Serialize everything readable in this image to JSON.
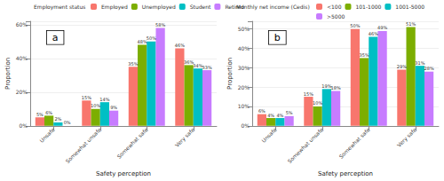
{
  "chart_data": [
    {
      "type": "bar",
      "annotations": [
        "a"
      ],
      "legend_title": "Employment status",
      "x_label": "Safety perception",
      "y_label": "Proportion",
      "categories": [
        "Unsafe",
        "Somewhat unsafe",
        "Somewhat safe",
        "Very safe"
      ],
      "series": [
        {
          "name": "Employed",
          "color": "#F8766D",
          "values": [
            5,
            15,
            35,
            46
          ],
          "value_labels": [
            "5%",
            "15%",
            "35%",
            "46%"
          ]
        },
        {
          "name": "Unemployed",
          "color": "#7CAE00",
          "values": [
            6,
            10,
            48,
            36
          ],
          "value_labels": [
            "6%",
            "10%",
            "48%",
            "36%"
          ]
        },
        {
          "name": "Student",
          "color": "#00BFC4",
          "values": [
            2,
            14,
            50,
            34
          ],
          "value_labels": [
            "2%",
            "14%",
            "50%",
            "34%"
          ]
        },
        {
          "name": "Retired",
          "color": "#C77CFF",
          "values": [
            0,
            9,
            58,
            33
          ],
          "value_labels": [
            "0%",
            "9%",
            "58%",
            "33%"
          ]
        }
      ],
      "ylim": [
        0,
        62
      ],
      "yticks": [
        {
          "value": 0,
          "label": "0%"
        },
        {
          "value": 20,
          "label": "20%"
        },
        {
          "value": 40,
          "label": "40%"
        },
        {
          "value": 60,
          "label": "60%"
        }
      ],
      "grid": true,
      "legend": "top",
      "data_labels": true
    },
    {
      "type": "bar",
      "annotations": [
        "b"
      ],
      "legend_title": "Monthly net income (Cedis)",
      "x_label": "Safety perception",
      "y_label": "Proportion",
      "categories": [
        "Unsafe",
        "Somewhat unsafe",
        "Somewhat safe",
        "Very safe"
      ],
      "series": [
        {
          "name": "<100",
          "color": "#F8766D",
          "values": [
            6,
            15,
            50,
            29
          ],
          "value_labels": [
            "6%",
            "15%",
            "50%",
            "29%"
          ]
        },
        {
          "name": "101-1000",
          "color": "#7CAE00",
          "values": [
            4,
            10,
            35,
            51
          ],
          "value_labels": [
            "4%",
            "10%",
            "35%",
            "51%"
          ]
        },
        {
          "name": "1001-5000",
          "color": "#00BFC4",
          "values": [
            4,
            19,
            46,
            31
          ],
          "value_labels": [
            "4%",
            "19%",
            "46%",
            "31%"
          ]
        },
        {
          "name": ">5000",
          "color": "#C77CFF",
          "values": [
            5,
            18,
            49,
            28
          ],
          "value_labels": [
            "5%",
            "18%",
            "49%",
            "28%"
          ]
        }
      ],
      "ylim": [
        0,
        54
      ],
      "yticks": [
        {
          "value": 0,
          "label": "0%"
        },
        {
          "value": 10,
          "label": "10%"
        },
        {
          "value": 20,
          "label": "20%"
        },
        {
          "value": 30,
          "label": "30%"
        },
        {
          "value": 40,
          "label": "40%"
        },
        {
          "value": 50,
          "label": "50%"
        }
      ],
      "grid": true,
      "legend": "top",
      "data_labels": true
    }
  ]
}
